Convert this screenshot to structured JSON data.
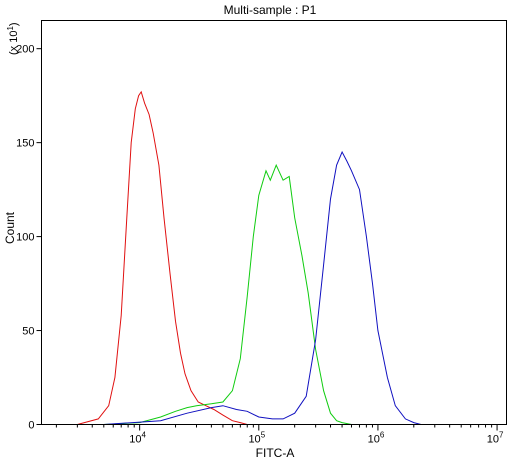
{
  "chart_data": {
    "type": "line",
    "title": "Multi-sample : P1",
    "xlabel": "FITC-A",
    "ylabel": "Count",
    "y_multiplier_label": "(x 10",
    "y_multiplier_exp": "1",
    "x_scale": "log",
    "xlim": [
      1500,
      12000000
    ],
    "ylim": [
      0,
      215
    ],
    "grid": false,
    "y_ticks": [
      0,
      50,
      100,
      150,
      200
    ],
    "x_ticks": [
      {
        "value": 10000,
        "base": "10",
        "exp": "4"
      },
      {
        "value": 100000,
        "base": "10",
        "exp": "5"
      },
      {
        "value": 1000000,
        "base": "10",
        "exp": "6"
      },
      {
        "value": 10000000,
        "base": "10",
        "exp": "7"
      }
    ],
    "series": [
      {
        "color": "#e01010",
        "x": [
          1500,
          3000,
          4500,
          5500,
          6200,
          7000,
          7800,
          8500,
          9200,
          9800,
          10300,
          11000,
          12000,
          13000,
          14500,
          16000,
          18000,
          20000,
          22000,
          24000,
          27000,
          31000,
          36000,
          42000,
          50000,
          60000,
          70000,
          80000
        ],
        "y": [
          0,
          0,
          3,
          10,
          25,
          58,
          110,
          150,
          168,
          175,
          177,
          171,
          165,
          155,
          138,
          110,
          80,
          55,
          38,
          27,
          18,
          12,
          10,
          8,
          5,
          2,
          1,
          0
        ]
      },
      {
        "color": "#10cc10",
        "x": [
          5000,
          10000,
          15000,
          20000,
          25000,
          30000,
          40000,
          50000,
          60000,
          70000,
          80000,
          90000,
          100000,
          115000,
          125000,
          140000,
          160000,
          180000,
          200000,
          230000,
          260000,
          300000,
          350000,
          400000,
          450000,
          500000,
          600000
        ],
        "y": [
          0,
          1,
          4,
          7,
          9,
          10,
          11,
          12,
          18,
          35,
          68,
          100,
          122,
          135,
          130,
          138,
          130,
          132,
          110,
          90,
          70,
          40,
          18,
          6,
          2,
          1,
          0
        ]
      },
      {
        "color": "#1010c0",
        "x": [
          5000,
          15000,
          25000,
          40000,
          50000,
          65000,
          80000,
          100000,
          130000,
          160000,
          200000,
          250000,
          300000,
          350000,
          400000,
          450000,
          500000,
          550000,
          600000,
          700000,
          800000,
          900000,
          1000000,
          1200000,
          1400000,
          1700000,
          2000000,
          2300000
        ],
        "y": [
          0,
          2,
          6,
          9,
          10,
          8,
          7,
          4,
          3,
          3,
          6,
          15,
          45,
          85,
          120,
          138,
          145,
          140,
          135,
          125,
          100,
          75,
          50,
          25,
          10,
          3,
          1,
          0
        ]
      }
    ]
  }
}
